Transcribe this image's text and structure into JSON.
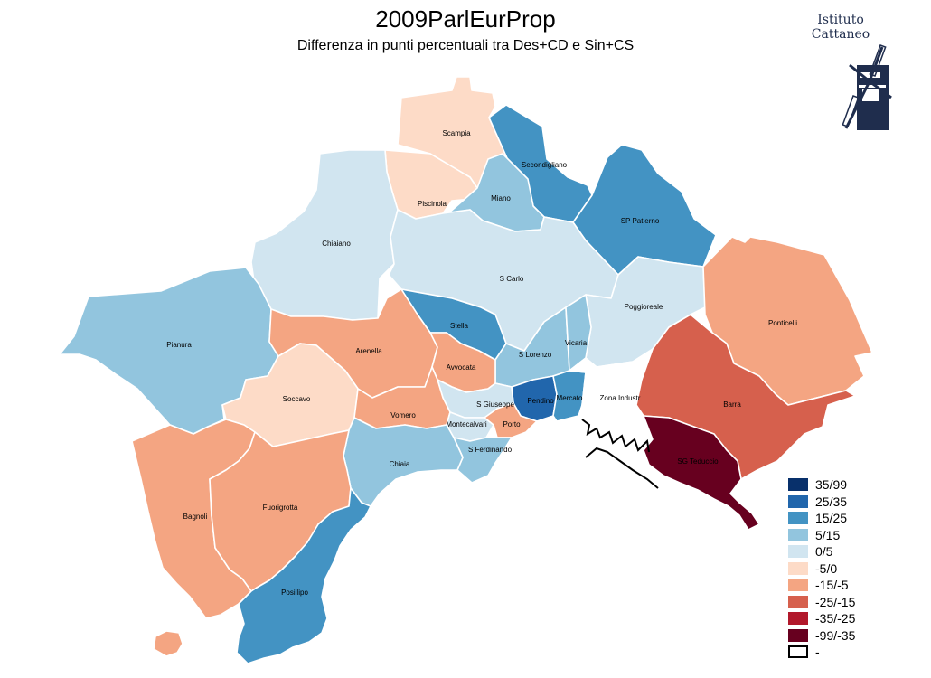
{
  "title": "2009ParlEurProp",
  "subtitle": "Differenza in punti percentuali tra Des+CD e Sin+CS",
  "logo": {
    "line1": "Istituto",
    "line2": "Cattaneo"
  },
  "colors": {
    "35/99": "#08306b",
    "25/35": "#2166ac",
    "15/25": "#4393c3",
    "5/15": "#92c5de",
    "0/5": "#d1e5f0",
    "-5/0": "#fddbc7",
    "-15/-5": "#f4a582",
    "-25/-15": "#d6604d",
    "-35/-25": "#b2182b",
    "-99/-35": "#67001f",
    "-": "#ffffff"
  },
  "legend": [
    {
      "label": "35/99",
      "key": "35/99"
    },
    {
      "label": "25/35",
      "key": "25/35"
    },
    {
      "label": "15/25",
      "key": "15/25"
    },
    {
      "label": "5/15",
      "key": "5/15"
    },
    {
      "label": "0/5",
      "key": "0/5"
    },
    {
      "label": "-5/0",
      "key": "-5/0"
    },
    {
      "label": "-15/-5",
      "key": "-15/-5"
    },
    {
      "label": "-25/-15",
      "key": "-25/-15"
    },
    {
      "label": "-35/-25",
      "key": "-35/-25"
    },
    {
      "label": "-99/-35",
      "key": "-99/-35"
    },
    {
      "label": "-",
      "key": "-"
    }
  ],
  "zones": [
    {
      "name": "Scampia",
      "class": "-5/0"
    },
    {
      "name": "Secondigliano",
      "class": "15/25"
    },
    {
      "name": "Piscinola",
      "class": "-5/0"
    },
    {
      "name": "Miano",
      "class": "5/15"
    },
    {
      "name": "SP Patierno",
      "class": "15/25"
    },
    {
      "name": "Chiaiano",
      "class": "0/5"
    },
    {
      "name": "S Carlo",
      "class": "0/5"
    },
    {
      "name": "Poggioreale",
      "class": "0/5"
    },
    {
      "name": "Ponticelli",
      "class": "-15/-5"
    },
    {
      "name": "Pianura",
      "class": "5/15"
    },
    {
      "name": "Stella",
      "class": "15/25"
    },
    {
      "name": "Arenella",
      "class": "-15/-5"
    },
    {
      "name": "S Lorenzo",
      "class": "5/15"
    },
    {
      "name": "Vicaria",
      "class": "5/15"
    },
    {
      "name": "Avvocata",
      "class": "-15/-5"
    },
    {
      "name": "Soccavo",
      "class": "-5/0"
    },
    {
      "name": "Pendino",
      "class": "25/35"
    },
    {
      "name": "Mercato",
      "class": "15/25"
    },
    {
      "name": "Zona Industr",
      "class": "-"
    },
    {
      "name": "Barra",
      "class": "-25/-15"
    },
    {
      "name": "S Giuseppe",
      "class": "0/5"
    },
    {
      "name": "Vomero",
      "class": "-15/-5"
    },
    {
      "name": "Montecalvari",
      "class": "0/5"
    },
    {
      "name": "Porto",
      "class": "-15/-5"
    },
    {
      "name": "S Ferdinando",
      "class": "5/15"
    },
    {
      "name": "SG Teduccio",
      "class": "-99/-35"
    },
    {
      "name": "Chiaia",
      "class": "5/15"
    },
    {
      "name": "Bagnoli",
      "class": "-15/-5"
    },
    {
      "name": "Fuorigrotta",
      "class": "-15/-5"
    },
    {
      "name": "Posillipo",
      "class": "15/25"
    }
  ]
}
